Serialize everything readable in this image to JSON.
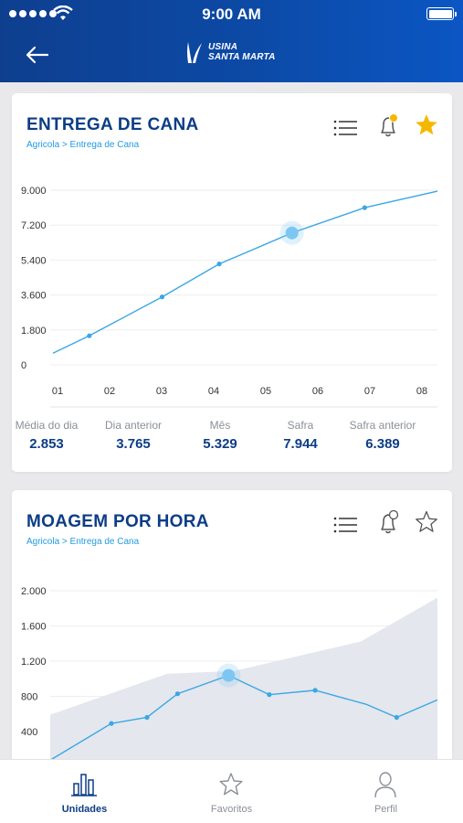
{
  "status_bar": {
    "time": "9:00 AM"
  },
  "header": {
    "logo_line1": "USINA",
    "logo_line2": "SANTA MARTA"
  },
  "cards": [
    {
      "title": "ENTREGA DE CANA",
      "breadcrumb": "Agricola > Entrega de Cana",
      "bell_has_badge": true,
      "favorited": true,
      "stats": [
        {
          "label": "Média do dia",
          "value": "2.853"
        },
        {
          "label": "Dia anterior",
          "value": "3.765"
        },
        {
          "label": "Mês",
          "value": "5.329"
        },
        {
          "label": "Safra",
          "value": "7.944"
        },
        {
          "label": "Safra anterior",
          "value": "6.389"
        }
      ]
    },
    {
      "title": "MOAGEM POR HORA",
      "breadcrumb": "Agricola > Entrega de Cana",
      "bell_has_badge": false,
      "favorited": false
    }
  ],
  "chart_data": [
    {
      "type": "line",
      "title": "ENTREGA DE CANA",
      "x_labels": [
        "01",
        "02",
        "03",
        "04",
        "05",
        "06",
        "07",
        "08"
      ],
      "y_labels": [
        "9.000",
        "7.200",
        "5.400",
        "3.600",
        "1.800",
        "0"
      ],
      "ylim": [
        0,
        9000
      ],
      "xlim": [
        0.9,
        8.3
      ],
      "points": [
        [
          1.6,
          1500
        ],
        [
          3.0,
          3500
        ],
        [
          4.1,
          5200
        ],
        [
          5.5,
          6800
        ],
        [
          6.9,
          8100
        ]
      ],
      "line": [
        [
          0.9,
          600
        ],
        [
          1.6,
          1500
        ],
        [
          3.0,
          3500
        ],
        [
          4.1,
          5200
        ],
        [
          5.5,
          6800
        ],
        [
          6.9,
          8100
        ],
        [
          8.3,
          8950
        ]
      ],
      "highlight_index": 3,
      "grid": true,
      "colors": {
        "line": "#3aa7e6",
        "highlight": "#7ec6f2"
      }
    },
    {
      "type": "line",
      "title": "MOAGEM POR HORA",
      "x_labels": [],
      "y_labels": [
        "2.000",
        "1.600",
        "1.200",
        "800",
        "400"
      ],
      "ylim": [
        0,
        2000
      ],
      "xlim": [
        0,
        7.6
      ],
      "line": [
        [
          0,
          60
        ],
        [
          1.2,
          480
        ],
        [
          1.9,
          550
        ],
        [
          2.5,
          820
        ],
        [
          3.5,
          1030
        ],
        [
          4.3,
          810
        ],
        [
          5.2,
          860
        ],
        [
          6.2,
          700
        ],
        [
          6.8,
          550
        ],
        [
          7.6,
          750
        ]
      ],
      "points": [
        [
          1.2,
          480
        ],
        [
          1.9,
          550
        ],
        [
          2.5,
          820
        ],
        [
          3.5,
          1030
        ],
        [
          4.3,
          810
        ],
        [
          5.2,
          860
        ],
        [
          6.8,
          550
        ]
      ],
      "highlight_index": 3,
      "area": [
        [
          0,
          580
        ],
        [
          2.3,
          1050
        ],
        [
          3.6,
          1080
        ],
        [
          6.1,
          1420
        ],
        [
          7.6,
          1920
        ]
      ],
      "grid": true,
      "colors": {
        "line": "#3aa7e6",
        "area": "#e4e7ed",
        "highlight": "#7ec6f2"
      }
    }
  ],
  "tabbar": {
    "items": [
      {
        "label": "Unidades",
        "icon": "building-chart-icon",
        "active": true
      },
      {
        "label": "Favoritos",
        "icon": "star-outline-icon",
        "active": false
      },
      {
        "label": "Perfil",
        "icon": "person-icon",
        "active": false
      }
    ]
  }
}
